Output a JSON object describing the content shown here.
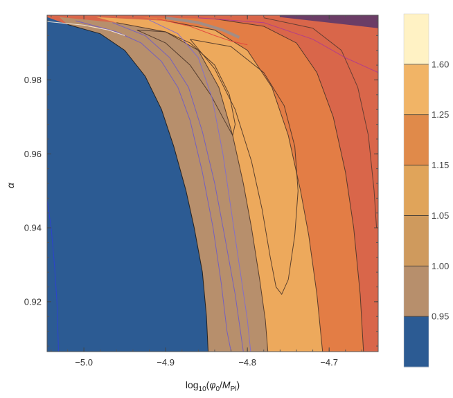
{
  "chart_data": {
    "type": "contour",
    "xlabel": "log10(φ₀/M_Pl)",
    "xlabel_parts": {
      "prefix": "log",
      "base": "10",
      "open": "(",
      "phi": "φ",
      "phi_sub": "0",
      "slash": "/",
      "m": "M",
      "m_sub": "Pl",
      "close": ")"
    },
    "ylabel": "α",
    "xlim": [
      -5.045,
      -4.64
    ],
    "ylim": [
      0.9065,
      0.9975
    ],
    "x_ticks": [
      {
        "value": -5.0,
        "label": "−5.0"
      },
      {
        "value": -4.9,
        "label": "−4.9"
      },
      {
        "value": -4.8,
        "label": "−4.8"
      },
      {
        "value": -4.7,
        "label": "−4.7"
      }
    ],
    "y_ticks": [
      {
        "value": 0.92,
        "label": "0.92"
      },
      {
        "value": 0.94,
        "label": "0.94"
      },
      {
        "value": 0.96,
        "label": "0.96"
      },
      {
        "value": 0.98,
        "label": "0.98"
      }
    ],
    "legend": {
      "placement": "right",
      "levels": [
        {
          "label": "",
          "color": "#2c5b93"
        },
        {
          "label": "0.95",
          "color": "#b78f6c"
        },
        {
          "label": "1.00",
          "color": "#cf9a5d"
        },
        {
          "label": "1.05",
          "color": "#e0a45a"
        },
        {
          "label": "1.15",
          "color": "#e08a4a"
        },
        {
          "label": "1.25",
          "color": "#f1b466"
        },
        {
          "label": "1.60",
          "color": "#fff2c4"
        }
      ]
    },
    "regions": [
      {
        "name": "blue-region",
        "level": "< 0.95",
        "color": "#2c5b93",
        "boundary": [
          [
            -5.045,
            0.9065
          ],
          [
            -5.045,
            0.997
          ],
          [
            -5.02,
            0.995
          ],
          [
            -4.98,
            0.9925
          ],
          [
            -4.95,
            0.988
          ],
          [
            -4.925,
            0.981
          ],
          [
            -4.905,
            0.972
          ],
          [
            -4.89,
            0.962
          ],
          [
            -4.875,
            0.95
          ],
          [
            -4.865,
            0.94
          ],
          [
            -4.855,
            0.928
          ],
          [
            -4.85,
            0.916
          ],
          [
            -4.848,
            0.9065
          ]
        ]
      },
      {
        "name": "tan-region",
        "level": "0.95-1.05",
        "color": "#b78f6c",
        "boundary": [
          [
            -5.03,
            0.997
          ],
          [
            -4.96,
            0.9955
          ],
          [
            -4.9,
            0.993
          ],
          [
            -4.86,
            0.988
          ],
          [
            -4.835,
            0.978
          ],
          [
            -4.818,
            0.965
          ],
          [
            -4.805,
            0.952
          ],
          [
            -4.795,
            0.94
          ],
          [
            -4.785,
            0.926
          ],
          [
            -4.778,
            0.915
          ],
          [
            -4.775,
            0.9065
          ],
          [
            -4.848,
            0.9065
          ],
          [
            -4.85,
            0.916
          ],
          [
            -4.855,
            0.928
          ],
          [
            -4.865,
            0.94
          ],
          [
            -4.875,
            0.95
          ],
          [
            -4.89,
            0.962
          ],
          [
            -4.905,
            0.972
          ],
          [
            -4.925,
            0.981
          ],
          [
            -4.95,
            0.988
          ],
          [
            -4.98,
            0.9925
          ],
          [
            -5.02,
            0.995
          ]
        ]
      },
      {
        "name": "light-orange-region",
        "level": "1.05-1.15",
        "color": "#eda95c",
        "boundary": [
          [
            -4.985,
            0.997
          ],
          [
            -4.9,
            0.996
          ],
          [
            -4.84,
            0.9935
          ],
          [
            -4.8,
            0.988
          ],
          [
            -4.77,
            0.978
          ],
          [
            -4.75,
            0.965
          ],
          [
            -4.735,
            0.95
          ],
          [
            -4.725,
            0.938
          ],
          [
            -4.715,
            0.922
          ],
          [
            -4.708,
            0.9065
          ],
          [
            -4.775,
            0.9065
          ],
          [
            -4.778,
            0.915
          ],
          [
            -4.785,
            0.926
          ],
          [
            -4.795,
            0.94
          ],
          [
            -4.805,
            0.952
          ],
          [
            -4.818,
            0.965
          ],
          [
            -4.835,
            0.978
          ],
          [
            -4.86,
            0.988
          ],
          [
            -4.9,
            0.993
          ],
          [
            -4.96,
            0.9955
          ]
        ]
      },
      {
        "name": "orange-region",
        "level": "1.15-1.25",
        "color": "#e37d45",
        "boundary": [
          [
            -4.93,
            0.997
          ],
          [
            -4.84,
            0.9965
          ],
          [
            -4.78,
            0.9945
          ],
          [
            -4.74,
            0.99
          ],
          [
            -4.715,
            0.982
          ],
          [
            -4.695,
            0.97
          ],
          [
            -4.68,
            0.955
          ],
          [
            -4.67,
            0.94
          ],
          [
            -4.662,
            0.922
          ],
          [
            -4.658,
            0.9065
          ],
          [
            -4.708,
            0.9065
          ],
          [
            -4.715,
            0.922
          ],
          [
            -4.725,
            0.938
          ],
          [
            -4.735,
            0.95
          ],
          [
            -4.75,
            0.965
          ],
          [
            -4.77,
            0.978
          ],
          [
            -4.8,
            0.988
          ],
          [
            -4.84,
            0.9935
          ],
          [
            -4.9,
            0.996
          ]
        ]
      },
      {
        "name": "red-orange-region",
        "level": "1.25-1.60",
        "color": "#d9664a",
        "boundary": [
          [
            -4.93,
            0.997
          ],
          [
            -4.64,
            0.997
          ],
          [
            -4.64,
            0.9065
          ],
          [
            -4.658,
            0.9065
          ],
          [
            -4.662,
            0.922
          ],
          [
            -4.67,
            0.94
          ],
          [
            -4.68,
            0.955
          ],
          [
            -4.695,
            0.97
          ],
          [
            -4.715,
            0.982
          ],
          [
            -4.74,
            0.99
          ],
          [
            -4.78,
            0.9945
          ],
          [
            -4.84,
            0.9965
          ]
        ]
      },
      {
        "name": "dark-purple-band",
        "level": "top edge",
        "color": "#6b3d66",
        "boundary": [
          [
            -4.76,
            0.9975
          ],
          [
            -4.64,
            0.9975
          ],
          [
            -4.64,
            0.994
          ],
          [
            -4.7,
            0.9955
          ],
          [
            -4.76,
            0.997
          ]
        ]
      }
    ],
    "contours": [
      {
        "name": "contour-blue-edge",
        "color": "#1a1a1a",
        "points": [
          [
            -5.02,
            0.995
          ],
          [
            -4.98,
            0.9925
          ],
          [
            -4.95,
            0.988
          ],
          [
            -4.925,
            0.981
          ],
          [
            -4.905,
            0.972
          ],
          [
            -4.89,
            0.962
          ],
          [
            -4.875,
            0.95
          ],
          [
            -4.865,
            0.94
          ],
          [
            -4.855,
            0.928
          ],
          [
            -4.85,
            0.916
          ],
          [
            -4.848,
            0.9065
          ]
        ]
      },
      {
        "name": "contour-tan-edge",
        "color": "#4a3428",
        "points": [
          [
            -4.96,
            0.9955
          ],
          [
            -4.9,
            0.993
          ],
          [
            -4.86,
            0.988
          ],
          [
            -4.835,
            0.978
          ],
          [
            -4.818,
            0.965
          ],
          [
            -4.805,
            0.952
          ],
          [
            -4.795,
            0.94
          ],
          [
            -4.785,
            0.926
          ],
          [
            -4.778,
            0.915
          ],
          [
            -4.775,
            0.9065
          ]
        ]
      },
      {
        "name": "contour-orange-edge",
        "color": "#4a3428",
        "points": [
          [
            -4.9,
            0.996
          ],
          [
            -4.84,
            0.9935
          ],
          [
            -4.8,
            0.988
          ],
          [
            -4.77,
            0.978
          ],
          [
            -4.75,
            0.965
          ],
          [
            -4.735,
            0.95
          ],
          [
            -4.725,
            0.938
          ],
          [
            -4.715,
            0.922
          ],
          [
            -4.708,
            0.9065
          ]
        ]
      },
      {
        "name": "contour-outer-1",
        "color": "#4a3428",
        "points": [
          [
            -4.84,
            0.9965
          ],
          [
            -4.78,
            0.9945
          ],
          [
            -4.74,
            0.99
          ],
          [
            -4.715,
            0.982
          ],
          [
            -4.695,
            0.97
          ],
          [
            -4.68,
            0.955
          ],
          [
            -4.67,
            0.94
          ],
          [
            -4.662,
            0.922
          ],
          [
            -4.658,
            0.9065
          ]
        ]
      },
      {
        "name": "contour-outer-2",
        "color": "#5a3a30",
        "points": [
          [
            -4.78,
            0.9968
          ],
          [
            -4.72,
            0.994
          ],
          [
            -4.685,
            0.988
          ],
          [
            -4.665,
            0.978
          ],
          [
            -4.652,
            0.965
          ],
          [
            -4.645,
            0.95
          ],
          [
            -4.642,
            0.94
          ]
        ]
      },
      {
        "name": "contour-loop-small",
        "color": "#4a3428",
        "points": [
          [
            -4.935,
            0.9935
          ],
          [
            -4.9,
            0.99
          ],
          [
            -4.87,
            0.984
          ],
          [
            -4.845,
            0.976
          ],
          [
            -4.828,
            0.969
          ],
          [
            -4.818,
            0.965
          ],
          [
            -4.815,
            0.968
          ],
          [
            -4.822,
            0.976
          ],
          [
            -4.84,
            0.984
          ],
          [
            -4.87,
            0.99
          ],
          [
            -4.9,
            0.993
          ],
          [
            -4.935,
            0.9935
          ]
        ]
      },
      {
        "name": "contour-loop-large",
        "color": "#4a3428",
        "points": [
          [
            -4.87,
            0.991
          ],
          [
            -4.84,
            0.983
          ],
          [
            -4.815,
            0.972
          ],
          [
            -4.795,
            0.958
          ],
          [
            -4.782,
            0.945
          ],
          [
            -4.772,
            0.932
          ],
          [
            -4.765,
            0.924
          ],
          [
            -4.758,
            0.922
          ],
          [
            -4.75,
            0.926
          ],
          [
            -4.742,
            0.938
          ],
          [
            -4.738,
            0.95
          ],
          [
            -4.742,
            0.962
          ],
          [
            -4.755,
            0.973
          ],
          [
            -4.78,
            0.982
          ],
          [
            -4.82,
            0.989
          ],
          [
            -4.87,
            0.991
          ]
        ]
      },
      {
        "name": "contour-purple-1",
        "color": "#6f5bc7",
        "points": [
          [
            -5.01,
            0.996
          ],
          [
            -4.96,
            0.993
          ],
          [
            -4.93,
            0.99
          ],
          [
            -4.905,
            0.985
          ],
          [
            -4.885,
            0.978
          ],
          [
            -4.87,
            0.969
          ],
          [
            -4.855,
            0.955
          ],
          [
            -4.842,
            0.94
          ],
          [
            -4.832,
            0.925
          ],
          [
            -4.825,
            0.912
          ],
          [
            -4.82,
            0.9065
          ]
        ]
      },
      {
        "name": "contour-purple-2",
        "color": "#6f5bc7",
        "points": [
          [
            -4.965,
            0.9955
          ],
          [
            -4.925,
            0.992
          ],
          [
            -4.895,
            0.986
          ],
          [
            -4.872,
            0.978
          ],
          [
            -4.855,
            0.966
          ],
          [
            -4.84,
            0.952
          ],
          [
            -4.828,
            0.938
          ],
          [
            -4.815,
            0.922
          ],
          [
            -4.805,
            0.9065
          ]
        ]
      },
      {
        "name": "contour-purple-3",
        "color": "#7f6cd0",
        "points": [
          [
            -4.92,
            0.9962
          ],
          [
            -4.885,
            0.9925
          ],
          [
            -4.86,
            0.986
          ],
          [
            -4.843,
            0.975
          ],
          [
            -4.83,
            0.96
          ],
          [
            -4.82,
            0.945
          ],
          [
            -4.81,
            0.93
          ],
          [
            -4.8,
            0.915
          ],
          [
            -4.796,
            0.9065
          ]
        ]
      },
      {
        "name": "contour-blue-left",
        "color": "#2b3fd6",
        "points": [
          [
            -5.045,
            0.9475
          ],
          [
            -5.04,
            0.94
          ],
          [
            -5.036,
            0.93
          ],
          [
            -5.033,
            0.92
          ],
          [
            -5.031,
            0.9065
          ]
        ]
      },
      {
        "name": "contour-magenta-top",
        "color": "#b03a8f",
        "points": [
          [
            -4.86,
            0.9968
          ],
          [
            -4.78,
            0.9955
          ],
          [
            -4.72,
            0.991
          ],
          [
            -4.68,
            0.986
          ],
          [
            -4.64,
            0.982
          ]
        ]
      },
      {
        "name": "contour-red-jagged",
        "color": "#e2403c",
        "points": [
          [
            -4.91,
            0.9965
          ],
          [
            -4.87,
            0.9945
          ],
          [
            -4.84,
            0.992
          ],
          [
            -4.82,
            0.9905
          ],
          [
            -4.8,
            0.9895
          ]
        ]
      },
      {
        "name": "contour-gray-band",
        "color": "#9a8f8c",
        "points": [
          [
            -4.9,
            0.9968
          ],
          [
            -4.86,
            0.9955
          ],
          [
            -4.83,
            0.9935
          ],
          [
            -4.81,
            0.9915
          ]
        ]
      },
      {
        "name": "contour-white-top",
        "color": "#f8efe1",
        "points": [
          [
            -5.045,
            0.9958
          ],
          [
            -5.0,
            0.9948
          ],
          [
            -4.97,
            0.9935
          ],
          [
            -4.95,
            0.992
          ]
        ]
      }
    ]
  }
}
